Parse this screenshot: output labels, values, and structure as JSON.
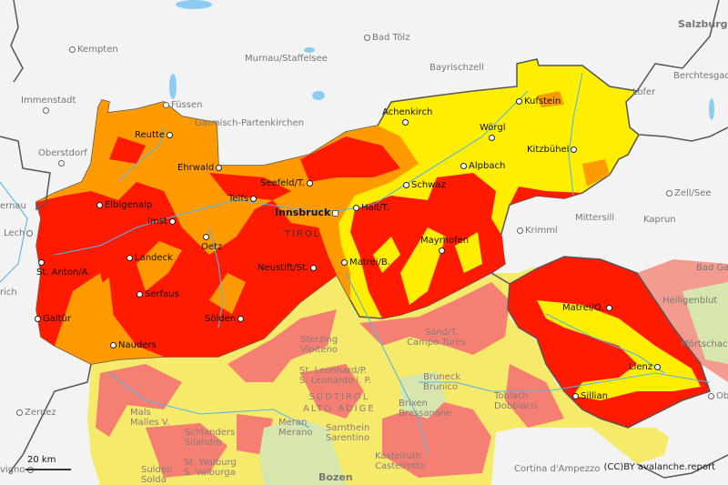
{
  "map": {
    "colors": {
      "danger_very_high": "#ff1a00",
      "danger_high": "#ff9a00",
      "danger_considerable": "#ffee00",
      "pale_red": "#f47f72",
      "pale_yellow": "#f6ea6a",
      "pale_green": "#d6e6ac",
      "pale_orange": "#f8a85a",
      "background": "#f3f3f3",
      "border": "#555555",
      "water": "#8ecbf0"
    },
    "regions": {
      "tirol": "TIROL",
      "suedtirol_1": "SÜDTIROL",
      "suedtirol_2": "ALTO ADIGE"
    },
    "cities_inside": [
      "Reutte",
      "Ehrwald",
      "Seefeld/T.",
      "Telfs",
      "Elbigenalp",
      "Imst",
      "Oetz",
      "Landeck",
      "St. Anton/A.",
      "Serfaus",
      "Galtür",
      "Nauders",
      "Neustift/St.",
      "Sölden",
      "Hall/T.",
      "Matrei/B.",
      "Schwaz",
      "Achenkirch",
      "Wörgl",
      "Kufstein",
      "Kitzbühel",
      "Alpbach",
      "Mayrhofen",
      "Matrei/O.",
      "Lienz",
      "Sillian"
    ],
    "capital": "Innsbruck",
    "cities_outside": [
      "Kempten",
      "Immenstadt",
      "Oberstdorf",
      "Füssen",
      "Murnau/Staffelsee",
      "Bad Tölz",
      "Bayrischzell",
      "Garmisch-Partenkirchen",
      "Lofer",
      "Berchtesgaden",
      "Zell/See",
      "Kaprun",
      "Mittersill",
      "Krimml",
      "Bad Gas",
      "Heiligenblut",
      "Mörtschach",
      "Lech",
      "ernau",
      "Zernez",
      "vigno",
      "rich",
      "Cortina d'Ampezzo",
      "Ob"
    ],
    "salzburg": "Salzburg",
    "bozen": "Bozen",
    "south_tyrol_cities": [
      {
        "de": "Sterzing",
        "it": "Vipiteno"
      },
      {
        "de": "Sand/T.",
        "it": "Campo Tures"
      },
      {
        "de": "St. Leonhard/P.",
        "it": "S. Leonardo i. P."
      },
      {
        "de": "Bruneck",
        "it": "Brunico"
      },
      {
        "de": "Brixen",
        "it": "Bressanone"
      },
      {
        "de": "Toblach",
        "it": "Dobbiaco"
      },
      {
        "de": "Meran",
        "it": "Merano"
      },
      {
        "de": "Sarnthein",
        "it": "Sarentino"
      },
      {
        "de": "Kastelruth",
        "it": "Castelrotto"
      },
      {
        "de": "Mals",
        "it": "Malles V."
      },
      {
        "de": "Schlanders",
        "it": "Silandro"
      },
      {
        "de": "Sulden",
        "it": "Solda"
      },
      {
        "de": "St. Walburg",
        "it": "S. Valburga"
      }
    ],
    "scale": "20 km",
    "credit": "(CC)BY avalanche.report"
  }
}
